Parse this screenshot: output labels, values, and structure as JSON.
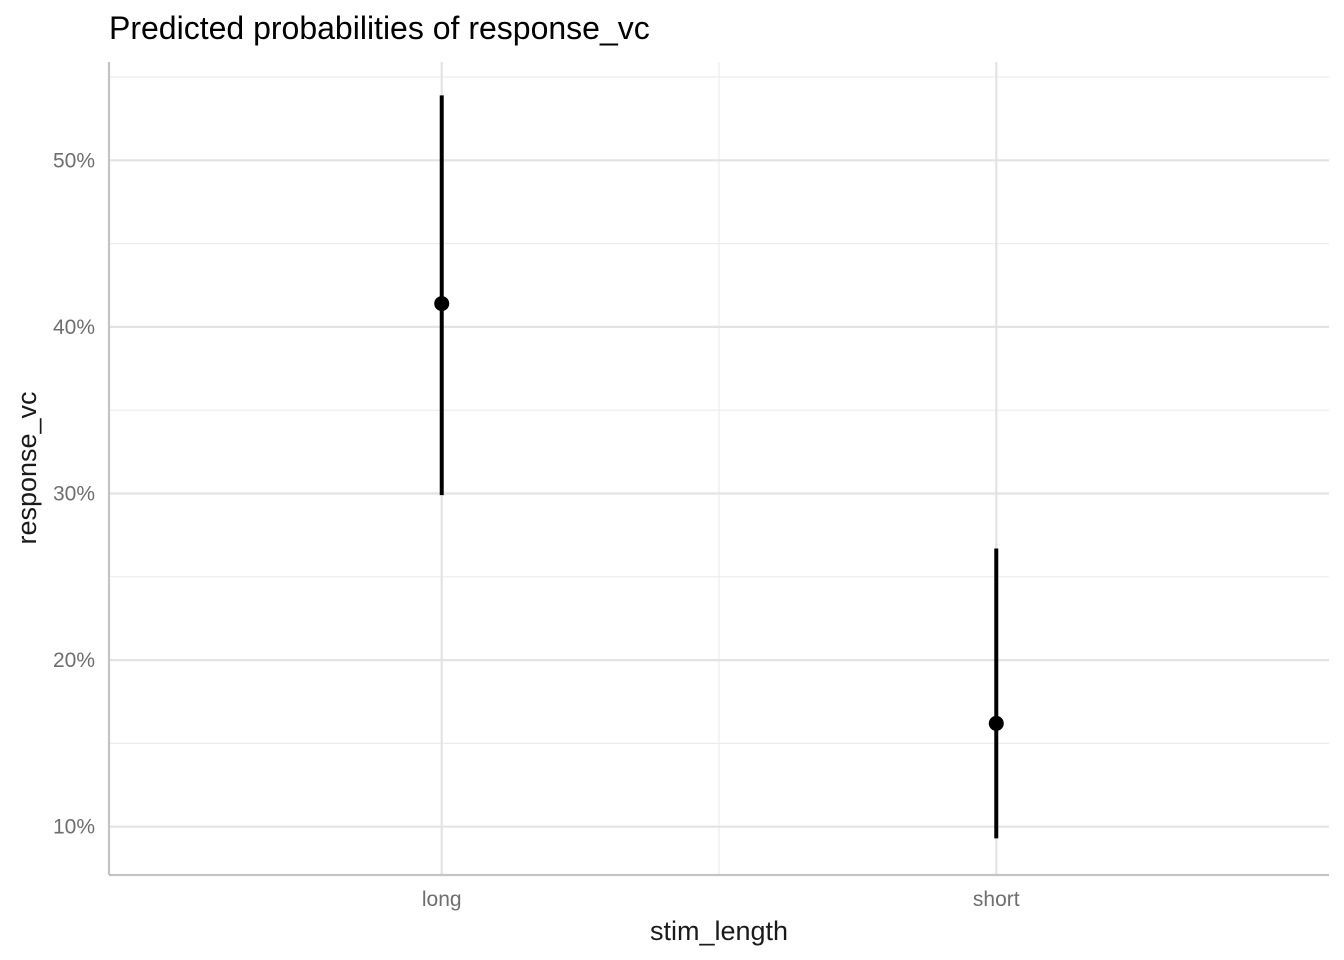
{
  "chart_data": {
    "type": "scatter",
    "title": "Predicted probabilities of response_vc",
    "xlabel": "stim_length",
    "ylabel": "response_vc",
    "categories": [
      "long",
      "short"
    ],
    "series": [
      {
        "points": [
          {
            "x": "long",
            "y": 0.414,
            "ymin": 0.299,
            "ymax": 0.539
          },
          {
            "x": "short",
            "y": 0.162,
            "ymin": 0.093,
            "ymax": 0.267
          }
        ]
      }
    ],
    "ylim": [
      0.071,
      0.559
    ],
    "yticks": [
      0.1,
      0.2,
      0.3,
      0.4,
      0.5
    ],
    "ytick_labels": [
      "10%",
      "20%",
      "30%",
      "40%",
      "50%"
    ],
    "grid": true,
    "legend": "none",
    "colors": {
      "point": "#000000"
    }
  }
}
